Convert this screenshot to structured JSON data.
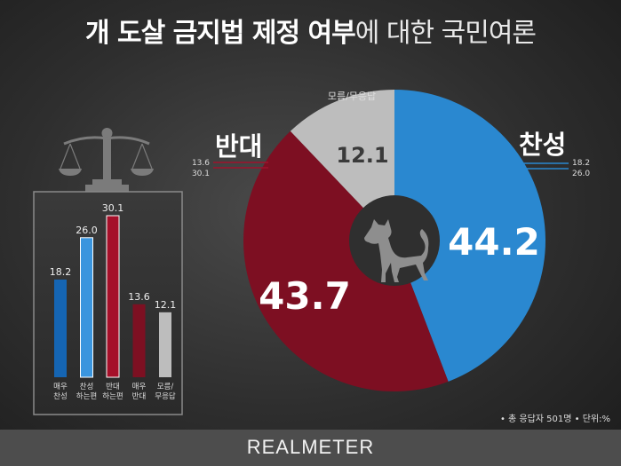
{
  "title": {
    "bold": "개 도살 금지법 제정 여부",
    "light": "에 대한 국민여론"
  },
  "brand": "REALMETER",
  "note": "• 총 응답자 501명  • 단위:%",
  "labels": {
    "oppose": "반대",
    "support": "찬성",
    "unknown": "모름/무응답"
  },
  "colors": {
    "support": "#2a88d0",
    "oppose": "#7d0f22",
    "unknown": "#bdbdbd",
    "strong_support": "#1565b3",
    "mild_support": "#3a95de",
    "mild_oppose": "#a5102a",
    "strong_oppose": "#7d1022"
  },
  "chart_data": [
    {
      "type": "pie",
      "categories": [
        "찬성",
        "반대",
        "모름/무응답"
      ],
      "values": [
        44.2,
        43.7,
        12.1
      ],
      "breakdown": {
        "support": [
          18.2,
          26.0
        ],
        "oppose": [
          13.6,
          30.1
        ]
      }
    },
    {
      "type": "bar",
      "categories": [
        "매우\n찬성",
        "찬성\n하는편",
        "반대\n하는편",
        "매우\n반대",
        "모름/\n무응답"
      ],
      "values": [
        18.2,
        26.0,
        30.1,
        13.6,
        12.1
      ]
    }
  ]
}
